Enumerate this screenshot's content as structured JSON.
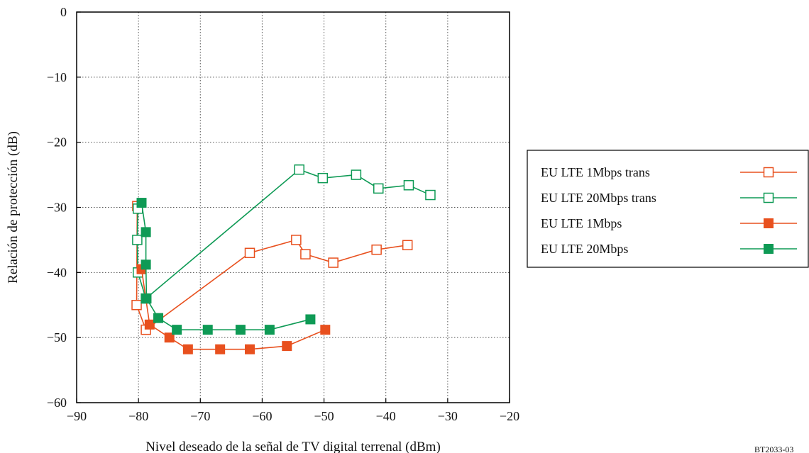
{
  "chart_data": {
    "type": "line",
    "xlabel": "Nivel deseado de la señal de TV digital terrenal (dBm)",
    "ylabel": "Relación  de protección (dB)",
    "xlim": [
      -90,
      -20
    ],
    "ylim": [
      -60,
      0
    ],
    "x_ticks": [
      -90,
      -80,
      -70,
      -60,
      -50,
      -40,
      -30,
      -20
    ],
    "y_ticks": [
      0,
      -10,
      -20,
      -30,
      -40,
      -50,
      -60
    ],
    "x_tick_labels": [
      "−90",
      "−80",
      "−70",
      "−60",
      "−50",
      "−40",
      "−30",
      "−20"
    ],
    "y_tick_labels": [
      "0",
      "−10",
      "−20",
      "−30",
      "−40",
      "−50",
      "−60"
    ],
    "grid": true,
    "legend_position": "right",
    "series": [
      {
        "name": "EU LTE 1Mbps trans",
        "color": "#e8501e",
        "marker": "square-open",
        "points": [
          [
            -80.2,
            -29.8
          ],
          [
            -80.3,
            -45
          ],
          [
            -78.8,
            -48.8
          ],
          [
            -62,
            -37
          ],
          [
            -54.5,
            -35
          ],
          [
            -53,
            -37.2
          ],
          [
            -48.5,
            -38.5
          ],
          [
            -41.5,
            -36.5
          ],
          [
            -36.5,
            -35.8
          ]
        ]
      },
      {
        "name": "EU LTE  20Mbps trans",
        "color": "#0e9a55",
        "marker": "square-open",
        "points": [
          [
            -80.1,
            -30.2
          ],
          [
            -80.2,
            -35
          ],
          [
            -80.1,
            -40
          ],
          [
            -78.8,
            -44
          ],
          [
            -54,
            -24.2
          ],
          [
            -50.2,
            -25.5
          ],
          [
            -44.8,
            -25
          ],
          [
            -41.2,
            -27.1
          ],
          [
            -36.3,
            -26.6
          ],
          [
            -32.8,
            -28.1
          ]
        ]
      },
      {
        "name": "EU LTE  1Mbps",
        "color": "#e8501e",
        "marker": "square-filled",
        "points": [
          [
            -79.5,
            -39.5
          ],
          [
            -78.2,
            -48
          ],
          [
            -75,
            -50
          ],
          [
            -72,
            -51.8
          ],
          [
            -66.8,
            -51.8
          ],
          [
            -62,
            -51.8
          ],
          [
            -56,
            -51.3
          ],
          [
            -49.8,
            -48.8
          ]
        ]
      },
      {
        "name": "EU LTE  20Mbps",
        "color": "#0e9a55",
        "marker": "square-filled",
        "points": [
          [
            -79.5,
            -29.3
          ],
          [
            -78.8,
            -33.8
          ],
          [
            -78.8,
            -38.8
          ],
          [
            -78.7,
            -44
          ],
          [
            -76.8,
            -47
          ],
          [
            -73.8,
            -48.8
          ],
          [
            -68.8,
            -48.8
          ],
          [
            -63.5,
            -48.8
          ],
          [
            -58.8,
            -48.8
          ],
          [
            -52.2,
            -47.2
          ]
        ]
      }
    ],
    "footnote": "BT2033-03"
  }
}
